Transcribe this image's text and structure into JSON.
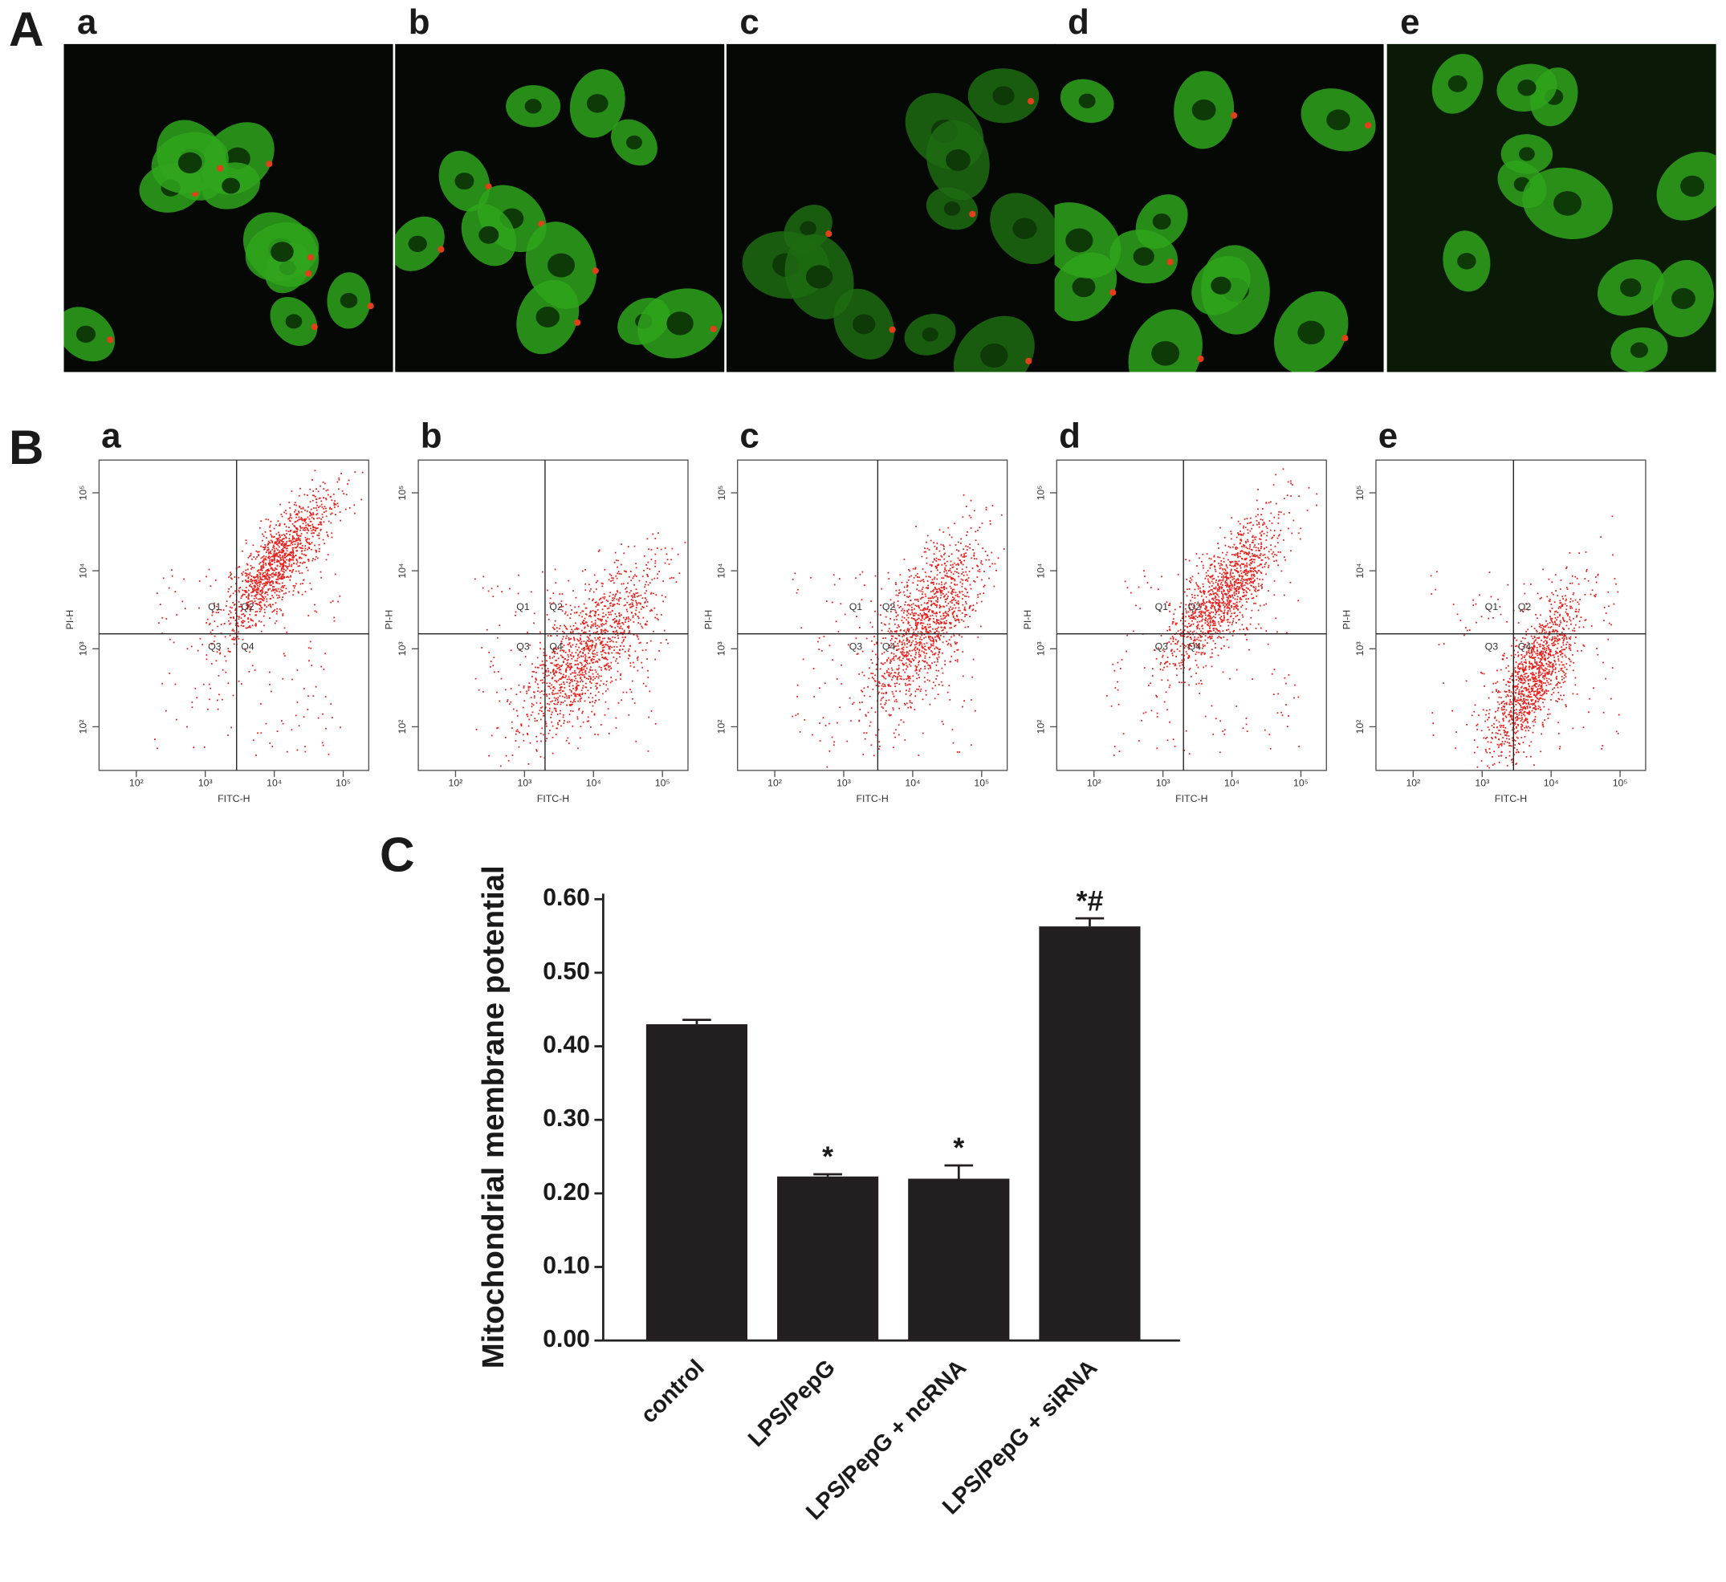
{
  "panel_labels": [
    "A",
    "B",
    "C"
  ],
  "micrographs": {
    "labels": [
      "a",
      "b",
      "c",
      "d",
      "e"
    ]
  },
  "flow_cytometry": {
    "labels": [
      "a",
      "b",
      "c",
      "d",
      "e"
    ],
    "x_label": "FITC-H",
    "y_label": "PI-H",
    "quadrants": [
      "Q1",
      "Q2",
      "Q3",
      "Q4"
    ],
    "xlim": [
      1.46,
      5.37
    ],
    "ylim": [
      1.44,
      5.42
    ],
    "xticks": [
      {
        "value": 2,
        "label": "10²"
      },
      {
        "value": 3,
        "label": "10³"
      },
      {
        "value": 4,
        "label": "10⁴"
      },
      {
        "value": 5,
        "label": "10⁵"
      }
    ],
    "yticks": [
      {
        "value": 2,
        "label": "10²"
      },
      {
        "value": 3,
        "label": "10³"
      },
      {
        "value": 4,
        "label": "10⁴"
      },
      {
        "value": 5,
        "label": "10⁵"
      }
    ]
  },
  "chart_data": {
    "type": "bar",
    "y_label": "Mitochondrial membrane potential",
    "categories": [
      "control",
      "LPS/PepG",
      "LPS/PepG + ncRNA",
      "LPS/PepG + siRNA"
    ],
    "values": [
      0.43,
      0.223,
      0.22,
      0.563
    ],
    "errors": [
      0.006,
      0.003,
      0.018,
      0.011
    ],
    "significance": [
      null,
      "*",
      "*",
      "*#"
    ],
    "color": "#231f20",
    "ylim": [
      0,
      0.6
    ],
    "yticks": [
      {
        "value": 0,
        "label": "0.00"
      },
      {
        "value": 0.1,
        "label": "0.10"
      },
      {
        "value": 0.2,
        "label": "0.20"
      },
      {
        "value": 0.3,
        "label": "0.30"
      },
      {
        "value": 0.4,
        "label": "0.40"
      },
      {
        "value": 0.5,
        "label": "0.50"
      },
      {
        "value": 0.6,
        "label": "0.60"
      }
    ]
  }
}
